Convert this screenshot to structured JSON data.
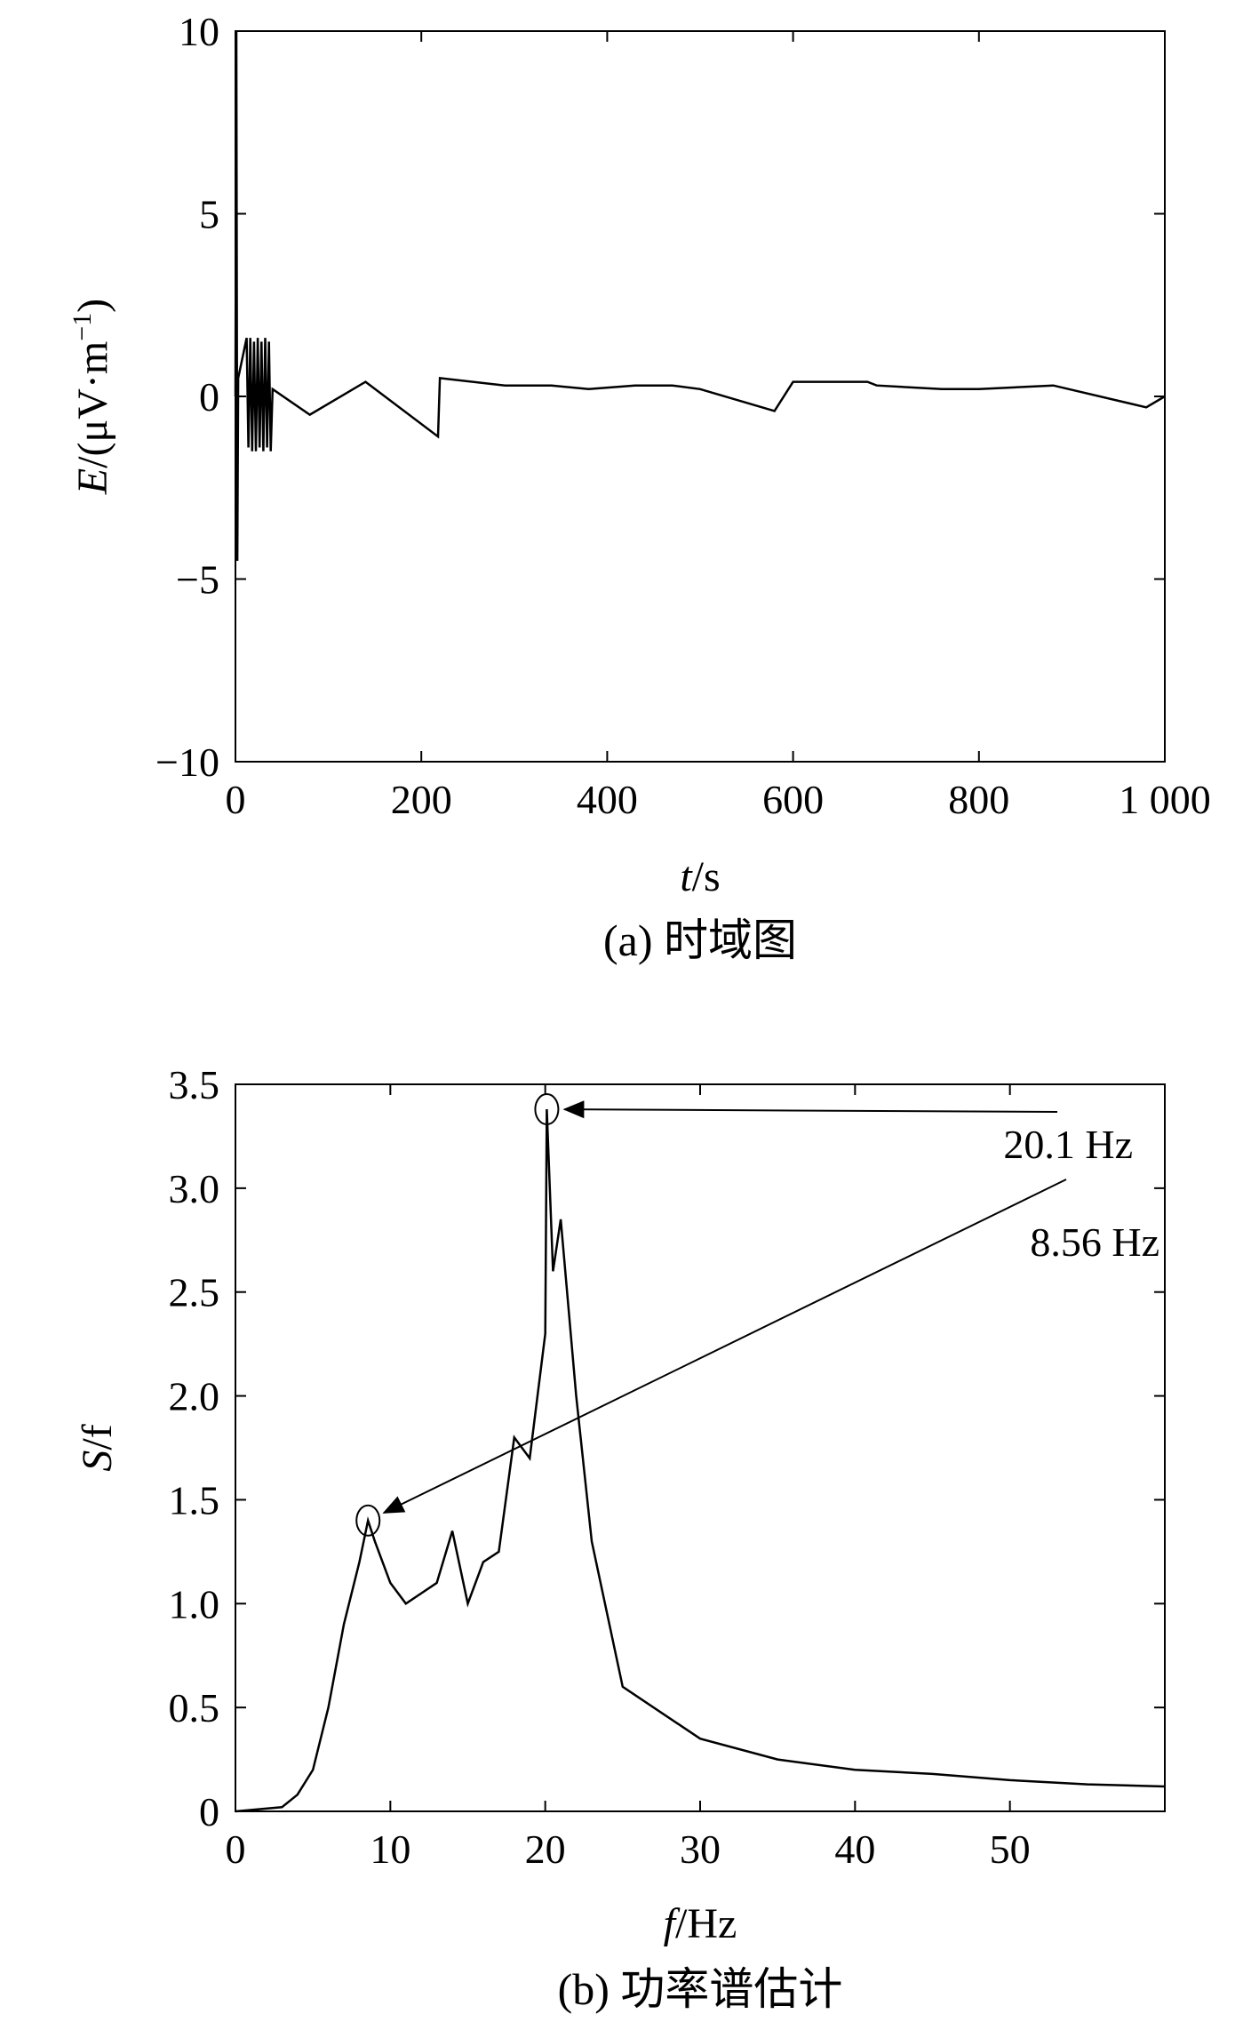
{
  "chart_data": [
    {
      "type": "line",
      "panel": "a",
      "caption": "(a) 时域图",
      "xlabel_italic": "t",
      "xlabel_rest": "/s",
      "ylabel_italic": "E",
      "ylabel_rest": "/(μV·m",
      "ylabel_sup": "−1",
      "ylabel_close": ")",
      "xlim": [
        0,
        1000
      ],
      "ylim": [
        -10,
        10
      ],
      "xticks": [
        0,
        200,
        400,
        600,
        800,
        1000
      ],
      "xtick_labels": [
        "0",
        "200",
        "400",
        "600",
        "800",
        "1 000"
      ],
      "yticks": [
        -10,
        -5,
        0,
        5,
        10
      ],
      "ytick_labels": [
        "−10",
        "−5",
        "0",
        "5",
        "10"
      ],
      "series": [
        {
          "x": [
            0,
            1,
            2,
            3,
            12,
            14,
            16,
            18,
            20,
            22,
            24,
            26,
            28,
            30,
            32,
            34,
            36,
            38,
            40,
            80,
            140,
            218,
            220,
            290,
            340,
            380,
            430,
            470,
            500,
            580,
            600,
            680,
            690,
            760,
            800,
            880,
            980,
            1000
          ],
          "y": [
            0,
            10,
            -4.5,
            0.5,
            1.6,
            -1.4,
            1.6,
            -1.5,
            1.5,
            -1.5,
            1.6,
            -1.4,
            1.5,
            -1.5,
            1.6,
            -1.4,
            1.5,
            -1.5,
            0.2,
            -0.5,
            0.4,
            -1.1,
            0.5,
            0.3,
            0.3,
            0.2,
            0.3,
            0.3,
            0.2,
            -0.4,
            0.4,
            0.4,
            0.3,
            0.2,
            0.2,
            0.3,
            -0.3,
            0
          ]
        }
      ]
    },
    {
      "type": "line",
      "panel": "b",
      "caption": "(b) 功率谱估计",
      "xlabel_italic": "f",
      "xlabel_rest": "/Hz",
      "ylabel_italic": "S",
      "ylabel_rest": "/f",
      "xlim": [
        0,
        60
      ],
      "ylim": [
        0,
        3.5
      ],
      "xticks": [
        0,
        10,
        20,
        30,
        40,
        50
      ],
      "xtick_labels": [
        "0",
        "10",
        "20",
        "30",
        "40",
        "50"
      ],
      "yticks": [
        0,
        0.5,
        1.0,
        1.5,
        2.0,
        2.5,
        3.0,
        3.5
      ],
      "ytick_labels": [
        "0",
        "0.5",
        "1.0",
        "1.5",
        "2.0",
        "2.5",
        "3.0",
        "3.5"
      ],
      "series": [
        {
          "x": [
            0,
            3,
            4,
            5,
            6,
            7,
            8,
            8.56,
            9,
            10,
            11,
            12,
            13,
            14,
            15,
            16,
            17,
            18,
            19,
            20,
            20.1,
            20.5,
            21,
            22,
            23,
            25,
            30,
            35,
            40,
            45,
            50,
            55,
            60
          ],
          "y": [
            0,
            0.02,
            0.08,
            0.2,
            0.5,
            0.9,
            1.2,
            1.4,
            1.3,
            1.1,
            1.0,
            1.05,
            1.1,
            1.35,
            1.0,
            1.2,
            1.25,
            1.8,
            1.7,
            2.3,
            3.38,
            2.6,
            2.85,
            2.0,
            1.3,
            0.6,
            0.35,
            0.25,
            0.2,
            0.18,
            0.15,
            0.13,
            0.12
          ]
        }
      ],
      "annotations": [
        {
          "label": "20.1 Hz",
          "x": 20.1,
          "y": 3.38
        },
        {
          "label": "8.56 Hz",
          "x": 8.56,
          "y": 1.4
        }
      ]
    }
  ]
}
